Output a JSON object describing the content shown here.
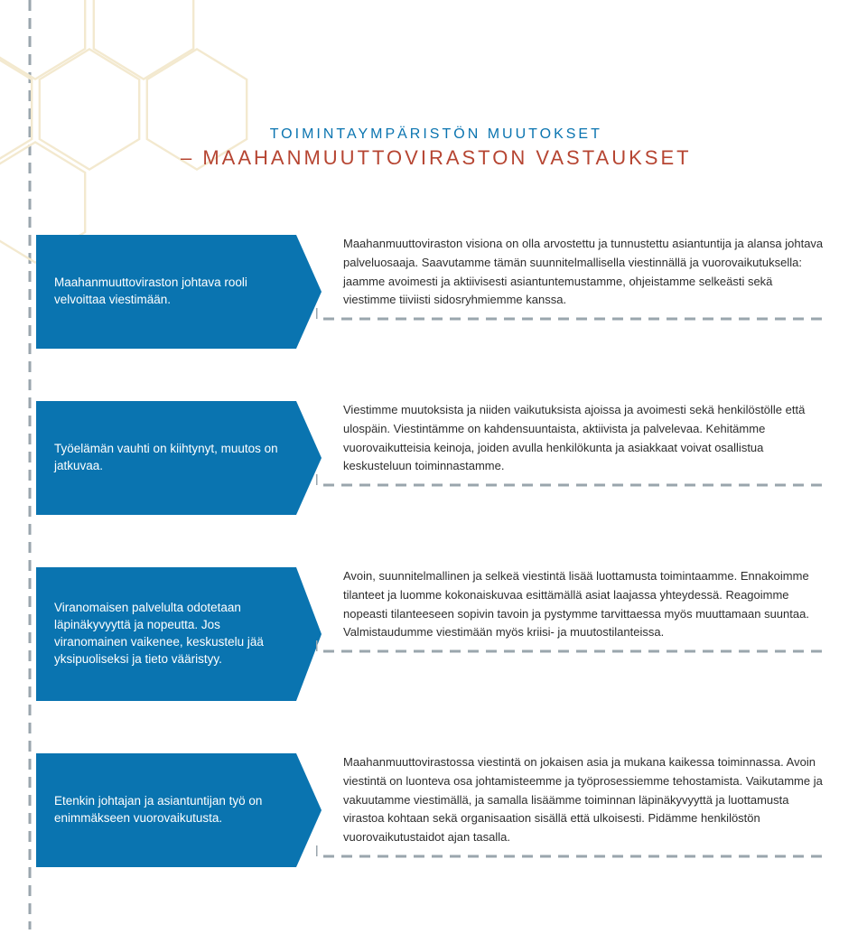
{
  "colors": {
    "accent_blue": "#0a74b0",
    "accent_red": "#b64532",
    "hex_stroke": "#f3e9cf",
    "dash_color": "#9aa6ad",
    "body_text": "#2d2d2d",
    "page_bg": "#ffffff"
  },
  "title": {
    "line1": "TOIMINTAYMPÄRISTÖN MUUTOKSET",
    "line2": "– MAAHANMUUTTOVIRASTON VASTAUKSET"
  },
  "rows": [
    {
      "arrow_text": "Maahanmuuttoviraston johtava rooli velvoittaa viestimään.",
      "description": "Maahanmuuttoviraston visiona on olla arvostettu ja tunnustettu asiantuntija ja alansa johtava palveluosaaja. Saavutamme tämän suunnitelmallisella viestinnällä ja vuorovaikutuksella: jaamme avoimesti ja aktiivisesti asiantuntemustamme, ohjeistamme selkeästi sekä viestimme tiiviisti sidosryhmiemme kanssa.",
      "arrow_height": 82
    },
    {
      "arrow_text": "Työelämän vauhti on kiihtynyt, muutos on jatkuvaa.",
      "description": "Viestimme muutoksista ja niiden vaikutuksista ajoissa ja avoimesti sekä henkilöstölle että ulospäin. Viestintämme on kahdensuuntaista, aktiivista ja palvelevaa. Kehitämme vuorovaikutteisia keinoja, joiden avulla henkilökunta ja asiakkaat voivat osallistua keskusteluun toiminnastamme.",
      "arrow_height": 82
    },
    {
      "arrow_text": "Viranomaisen palvelulta odotetaan läpinäkyvyyttä ja nopeutta. Jos viranomainen vaikenee, keskustelu jää yksipuoliseksi ja tieto vääristyy.",
      "description": "Avoin, suunnitelmallinen ja selkeä viestintä lisää luottamusta toimintaamme. Ennakoimme tilanteet ja luomme kokonaiskuvaa esittämällä asiat laajassa yhteydessä. Reagoimme nopeasti tilanteeseen sopivin tavoin ja pystymme tarvittaessa myös muuttamaan suuntaa. Valmistaudumme viestimään myös kriisi- ja muutostilanteissa.",
      "arrow_height": 104
    },
    {
      "arrow_text": "Etenkin johtajan ja asiantuntijan työ on enimmäkseen vuorovaikutusta.",
      "description": "Maahanmuuttovirastossa viestintä on jokaisen asia ja mukana kaikessa toiminnassa. Avoin viestintä on luonteva osa johtamisteemme ja työprosessiemme tehostamista. Vaikutamme ja vakuutamme viestimällä, ja samalla lisäämme toiminnan läpinäkyvyyttä ja luottamusta virastoa kohtaan sekä organisaation sisällä että ulkoisesti. Pidämme henkilöstön vuorovaikutustaidot ajan tasalla.",
      "arrow_height": 82
    }
  ],
  "dash": {
    "stroke_width": 3,
    "dash_array": "12 8"
  }
}
